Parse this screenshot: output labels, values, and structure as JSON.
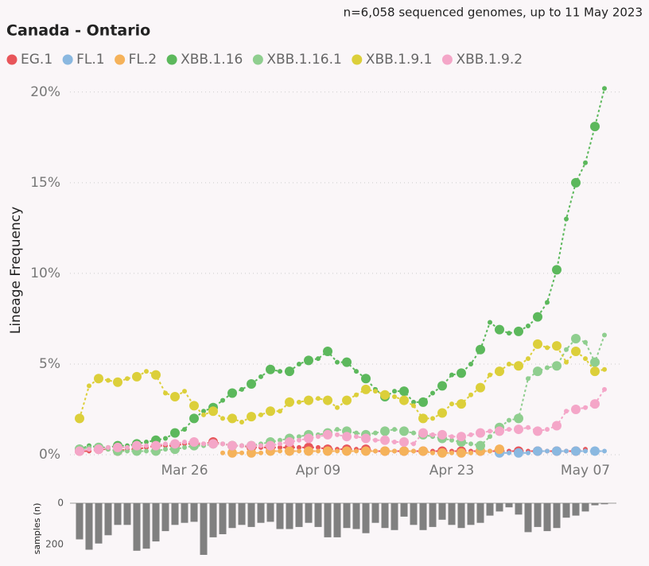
{
  "chart_data": [
    {
      "type": "line",
      "title": "Canada - Ontario",
      "subtitle": "n=6,058 sequenced genomes, up to 11 May 2023",
      "y_label": "Lineage Frequency",
      "categories": [
        null,
        null,
        null,
        null,
        null,
        null,
        null,
        null,
        null,
        null,
        null,
        "Mar 26",
        null,
        null,
        null,
        null,
        null,
        null,
        null,
        null,
        null,
        null,
        null,
        null,
        null,
        "Apr 09",
        null,
        null,
        null,
        null,
        null,
        null,
        null,
        null,
        null,
        null,
        null,
        null,
        null,
        "Apr 23",
        null,
        null,
        null,
        null,
        null,
        null,
        null,
        null,
        null,
        null,
        null,
        null,
        null,
        "May 07",
        null,
        null
      ],
      "ylim": [
        0,
        21
      ],
      "yticks": [
        {
          "value": 0,
          "label": "0%"
        },
        {
          "value": 5,
          "label": "5%"
        },
        {
          "value": 10,
          "label": "10%"
        },
        {
          "value": 15,
          "label": "15%"
        },
        {
          "value": 20,
          "label": "20%"
        }
      ],
      "grid": true,
      "series": [
        {
          "name": "EG.1",
          "color": "#e8555a",
          "values": [
            0.2,
            0.2,
            0.3,
            0.3,
            0.2,
            0.3,
            0.3,
            0.4,
            0.5,
            0.5,
            0.5,
            0.6,
            0.6,
            0.6,
            0.7,
            0.6,
            0.5,
            0.5,
            0.4,
            0.4,
            0.4,
            0.4,
            0.4,
            0.4,
            0.4,
            0.4,
            0.3,
            0.3,
            0.3,
            0.3,
            0.3,
            0.2,
            0.2,
            0.2,
            0.2,
            0.2,
            0.2,
            0.2,
            0.2,
            0.2,
            0.2,
            0.2,
            0.2,
            0.2,
            0.2,
            0.2,
            0.2,
            0.2,
            0.2,
            0.2,
            0.2,
            0.2,
            0.2,
            0.3,
            null,
            null
          ]
        },
        {
          "name": "FL.1",
          "color": "#8ab8e0",
          "values": [
            null,
            null,
            null,
            null,
            null,
            null,
            null,
            null,
            null,
            null,
            null,
            null,
            null,
            null,
            null,
            null,
            null,
            null,
            null,
            null,
            null,
            null,
            null,
            null,
            null,
            null,
            null,
            null,
            null,
            null,
            null,
            null,
            null,
            null,
            null,
            null,
            null,
            null,
            null,
            null,
            null,
            null,
            null,
            null,
            0.1,
            0.1,
            0.1,
            0.1,
            0.2,
            0.2,
            0.2,
            0.2,
            0.2,
            0.2,
            0.2,
            0.2
          ]
        },
        {
          "name": "FL.2",
          "color": "#f5b25a",
          "values": [
            null,
            null,
            null,
            null,
            null,
            null,
            null,
            null,
            null,
            null,
            null,
            null,
            null,
            null,
            null,
            0.1,
            0.1,
            0.1,
            0.1,
            0.1,
            0.2,
            0.2,
            0.2,
            0.2,
            0.2,
            0.2,
            0.2,
            0.2,
            0.2,
            0.2,
            0.2,
            0.2,
            0.2,
            0.2,
            0.2,
            0.2,
            0.2,
            0.1,
            0.1,
            0.1,
            0.1,
            0.1,
            0.2,
            0.2,
            0.3,
            null,
            null,
            null,
            null,
            null,
            null,
            null,
            null,
            null,
            null,
            null
          ]
        },
        {
          "name": "XBB.1.16",
          "color": "#5cb85c",
          "values": [
            0.3,
            0.5,
            0.4,
            0.4,
            0.5,
            0.5,
            0.6,
            0.7,
            0.8,
            0.9,
            1.2,
            1.4,
            2.0,
            2.4,
            2.6,
            3.0,
            3.4,
            3.6,
            3.9,
            4.3,
            4.7,
            4.6,
            4.6,
            5.0,
            5.2,
            5.3,
            5.7,
            5.1,
            5.1,
            4.6,
            4.2,
            3.6,
            3.2,
            3.5,
            3.5,
            2.9,
            2.9,
            3.4,
            3.8,
            4.4,
            4.5,
            5.0,
            5.8,
            7.3,
            6.9,
            6.7,
            6.8,
            7.1,
            7.6,
            8.4,
            10.2,
            13.0,
            15.0,
            16.1,
            18.1,
            20.2
          ]
        },
        {
          "name": "XBB.1.16.1",
          "color": "#8fce8f",
          "values": [
            0.3,
            0.4,
            0.4,
            0.3,
            0.2,
            0.2,
            0.2,
            0.2,
            0.2,
            0.3,
            0.3,
            0.4,
            0.5,
            0.5,
            0.6,
            0.6,
            0.5,
            0.5,
            0.5,
            0.6,
            0.7,
            0.8,
            0.9,
            1.0,
            1.1,
            1.1,
            1.2,
            1.4,
            1.3,
            1.2,
            1.1,
            1.2,
            1.3,
            1.4,
            1.3,
            1.2,
            1.1,
            1.0,
            0.9,
            0.8,
            0.7,
            0.6,
            0.5,
            1.0,
            1.5,
            1.9,
            2.0,
            4.2,
            4.6,
            4.8,
            4.9,
            5.8,
            6.4,
            6.2,
            5.1,
            6.6
          ]
        },
        {
          "name": "XBB.1.9.1",
          "color": "#dccf3a",
          "values": [
            2.0,
            3.8,
            4.2,
            4.1,
            4.0,
            4.2,
            4.3,
            4.6,
            4.4,
            3.4,
            3.2,
            3.5,
            2.7,
            2.2,
            2.4,
            2.0,
            2.0,
            1.8,
            2.1,
            2.2,
            2.4,
            2.4,
            2.9,
            2.9,
            3.0,
            3.1,
            3.0,
            2.6,
            3.0,
            3.3,
            3.6,
            3.5,
            3.3,
            3.2,
            3.0,
            2.7,
            2.0,
            2.0,
            2.3,
            2.8,
            2.8,
            3.3,
            3.7,
            4.4,
            4.6,
            5.0,
            4.9,
            5.3,
            6.1,
            5.9,
            6.0,
            5.1,
            5.7,
            5.3,
            4.6,
            4.7
          ]
        },
        {
          "name": "XBB.1.9.2",
          "color": "#f4a6c8",
          "values": [
            0.2,
            0.3,
            0.3,
            0.4,
            0.4,
            0.4,
            0.5,
            0.5,
            0.5,
            0.6,
            0.6,
            0.7,
            0.7,
            0.6,
            0.6,
            0.6,
            0.5,
            0.5,
            0.5,
            0.5,
            0.5,
            0.6,
            0.7,
            0.8,
            0.9,
            1.0,
            1.1,
            1.1,
            1.0,
            1.0,
            0.9,
            0.8,
            0.8,
            0.7,
            0.7,
            0.6,
            1.2,
            1.1,
            1.1,
            1.0,
            1.0,
            1.1,
            1.2,
            1.3,
            1.3,
            1.4,
            1.4,
            1.5,
            1.3,
            1.4,
            1.6,
            2.4,
            2.5,
            2.6,
            2.8,
            3.6
          ]
        }
      ]
    },
    {
      "type": "bar",
      "y_label": "samples (n)",
      "color": "#808080",
      "ylim": [
        0,
        250
      ],
      "yticks": [
        0,
        200
      ],
      "values": [
        175,
        225,
        195,
        155,
        105,
        105,
        230,
        220,
        185,
        135,
        105,
        95,
        90,
        250,
        165,
        150,
        120,
        105,
        115,
        95,
        90,
        125,
        125,
        115,
        95,
        115,
        165,
        165,
        120,
        125,
        145,
        95,
        120,
        130,
        65,
        105,
        130,
        115,
        80,
        105,
        120,
        105,
        95,
        60,
        40,
        20,
        55,
        140,
        115,
        135,
        120,
        70,
        60,
        40,
        10,
        5
      ]
    }
  ]
}
